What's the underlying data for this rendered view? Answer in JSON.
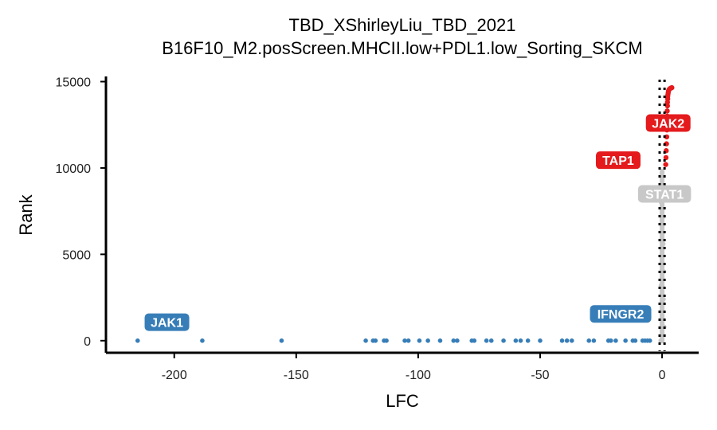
{
  "chart_data": {
    "type": "scatter",
    "title": "TBD_XShirleyLiu_TBD_2021",
    "subtitle": "B16F10_M2.posScreen.MHCII.low+PDL1.low_Sorting_SKCM",
    "xlabel": "LFC",
    "ylabel": "Rank",
    "xlim": [
      -228,
      15
    ],
    "ylim": [
      -700,
      15300
    ],
    "x_ticks": [
      -200,
      -150,
      -100,
      -50,
      0
    ],
    "x_tick_labels": [
      "-200",
      "-150",
      "-100",
      "-50",
      "0"
    ],
    "y_ticks": [
      0,
      5000,
      10000,
      15000
    ],
    "y_tick_labels": [
      "0",
      "5000",
      "10000",
      "15000"
    ],
    "vlines": [
      -1,
      1
    ],
    "legend": "none",
    "grid": false,
    "colors": {
      "negative": "#377eb8",
      "positive": "#e41a1c",
      "neutral": "#c8c8c8",
      "vline": "#000000"
    },
    "series": [
      {
        "group": "negative",
        "x": [
          -215,
          -188.5,
          -156,
          -121.5,
          -118.5,
          -117.5,
          -114,
          -113,
          -105.5,
          -104,
          -99.5,
          -96,
          -91,
          -85.5,
          -84,
          -78,
          -77,
          -72,
          -70,
          -65,
          -60,
          -58,
          -55,
          -50,
          -41,
          -39,
          -37,
          -30,
          -28,
          -22,
          -21,
          -19,
          -15,
          -12,
          -11,
          -8,
          -7,
          -6,
          -5
        ],
        "y": [
          0,
          0,
          0,
          0,
          0,
          0,
          0,
          0,
          0,
          0,
          0,
          0,
          0,
          0,
          0,
          0,
          0,
          0,
          0,
          0,
          0,
          0,
          0,
          0,
          0,
          0,
          0,
          0,
          0,
          0,
          0,
          0,
          0,
          0,
          0,
          0,
          0,
          0,
          0
        ]
      },
      {
        "group": "positive",
        "x": [
          1.5,
          1.6,
          1.7,
          1.8,
          1.9,
          2.0,
          2.0,
          2.1,
          2.1,
          2.2,
          2.2,
          2.3,
          2.3,
          2.4,
          2.5,
          2.6,
          2.8,
          3.0,
          3.3,
          3.6,
          4.0
        ],
        "y": [
          10200,
          10600,
          11000,
          11400,
          11800,
          12200,
          12600,
          13000,
          13300,
          13600,
          13800,
          14000,
          14150,
          14250,
          14350,
          14450,
          14520,
          14560,
          14600,
          14630,
          14650
        ]
      },
      {
        "group": "neutral",
        "x": [
          -0.6,
          0.9,
          -0.3,
          0.6,
          -0.5,
          0.8,
          -0.2,
          0.5,
          0.0,
          0.7,
          -0.4,
          0.3
        ],
        "y": [
          0,
          800,
          1600,
          2400,
          3200,
          4000,
          4800,
          5600,
          6400,
          7200,
          8000,
          9000
        ]
      }
    ],
    "annotations": [
      {
        "text": "JAK1",
        "x": -203,
        "y": 1070,
        "group": "negative"
      },
      {
        "text": "IFNGR2",
        "x": -17,
        "y": 1550,
        "group": "negative"
      },
      {
        "text": "TAP1",
        "x": -18,
        "y": 10450,
        "group": "positive"
      },
      {
        "text": "JAK2",
        "x": 2.5,
        "y": 12600,
        "group": "positive"
      },
      {
        "text": "STAT1",
        "x": 1,
        "y": 8500,
        "group": "neutral"
      }
    ]
  }
}
